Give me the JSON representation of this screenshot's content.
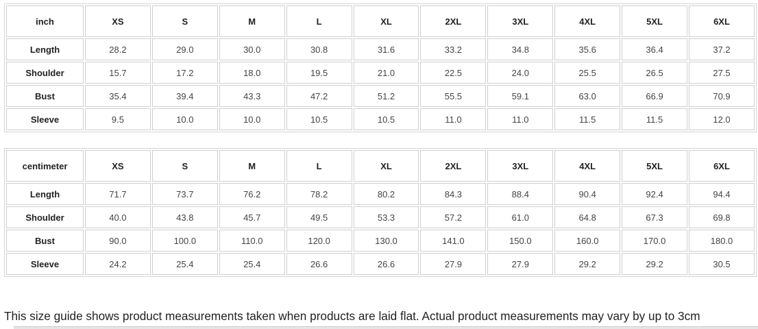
{
  "sizes": [
    "XS",
    "S",
    "M",
    "L",
    "XL",
    "2XL",
    "3XL",
    "4XL",
    "5XL",
    "6XL"
  ],
  "tables": [
    {
      "unit": "inch",
      "rows": [
        {
          "label": "Length",
          "values": [
            "28.2",
            "29.0",
            "30.0",
            "30.8",
            "31.6",
            "33.2",
            "34.8",
            "35.6",
            "36.4",
            "37.2"
          ]
        },
        {
          "label": "Shoulder",
          "values": [
            "15.7",
            "17.2",
            "18.0",
            "19.5",
            "21.0",
            "22.5",
            "24.0",
            "25.5",
            "26.5",
            "27.5"
          ]
        },
        {
          "label": "Bust",
          "values": [
            "35.4",
            "39.4",
            "43.3",
            "47.2",
            "51.2",
            "55.5",
            "59.1",
            "63.0",
            "66.9",
            "70.9"
          ]
        },
        {
          "label": "Sleeve",
          "values": [
            "9.5",
            "10.0",
            "10.0",
            "10.5",
            "10.5",
            "11.0",
            "11.0",
            "11.5",
            "11.5",
            "12.0"
          ]
        }
      ]
    },
    {
      "unit": "centimeter",
      "rows": [
        {
          "label": "Length",
          "values": [
            "71.7",
            "73.7",
            "76.2",
            "78.2",
            "80.2",
            "84.3",
            "88.4",
            "90.4",
            "92.4",
            "94.4"
          ]
        },
        {
          "label": "Shoulder",
          "values": [
            "40.0",
            "43.8",
            "45.7",
            "49.5",
            "53.3",
            "57.2",
            "61.0",
            "64.8",
            "67.3",
            "69.8"
          ]
        },
        {
          "label": "Bust",
          "values": [
            "90.0",
            "100.0",
            "110.0",
            "120.0",
            "130.0",
            "141.0",
            "150.0",
            "160.0",
            "170.0",
            "180.0"
          ]
        },
        {
          "label": "Sleeve",
          "values": [
            "24.2",
            "25.4",
            "25.4",
            "26.6",
            "26.6",
            "27.9",
            "27.9",
            "29.2",
            "29.2",
            "30.5"
          ]
        }
      ]
    }
  ],
  "note": "This size guide shows product measurements taken when products are laid flat. Actual product measurements may vary by up to 3cm"
}
